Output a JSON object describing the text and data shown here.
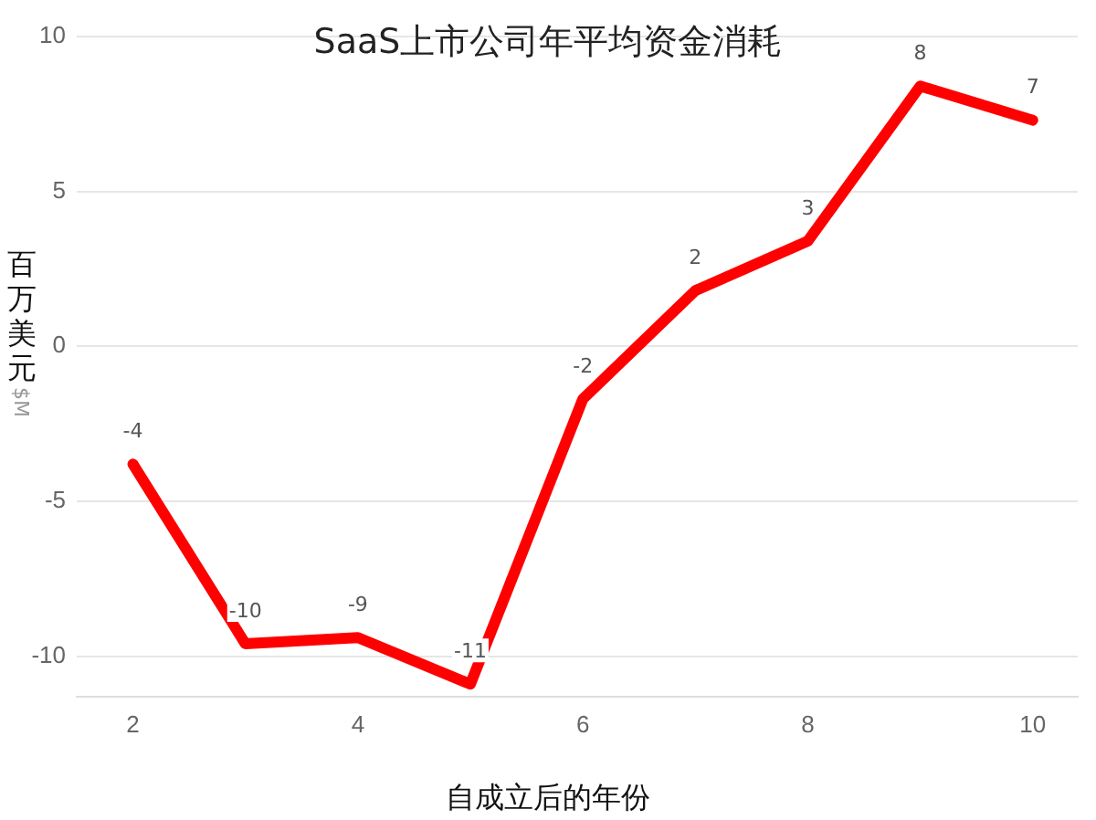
{
  "chart_data": {
    "type": "line",
    "title": "SaaS上市公司年平均资金消耗",
    "xlabel": "自成立后的年份",
    "ylabel": "百万美元",
    "annotations": [
      "$M"
    ],
    "x": [
      2,
      3,
      4,
      5,
      6,
      7,
      8,
      9,
      10
    ],
    "series": [
      {
        "color": "#ff0000",
        "values": [
          -3.8,
          -9.6,
          -9.4,
          -10.9,
          -1.7,
          1.8,
          3.4,
          8.4,
          7.3
        ],
        "value_labels": [
          "-4",
          "-10",
          "-9",
          "-11",
          "-2",
          "2",
          "3",
          "8",
          "7"
        ]
      }
    ],
    "xlim": [
      1.5,
      10.4
    ],
    "xticks": [
      2,
      4,
      6,
      8,
      10
    ],
    "ylim": [
      -11.3,
      10
    ],
    "yticks": [
      -10,
      -5,
      0,
      5,
      10
    ],
    "grid": "y",
    "legend": false,
    "marker": "none",
    "line_style": "solid"
  }
}
